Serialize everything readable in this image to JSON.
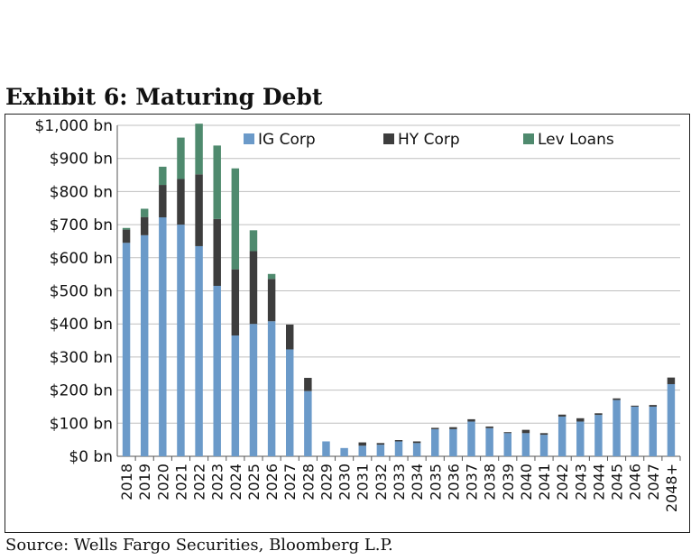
{
  "title": "Exhibit 6: Maturing Debt",
  "source": "Source: Wells Fargo Securities, Bloomberg L.P.",
  "colors": {
    "ig": "#6b9ac9",
    "hy": "#3d3d3d",
    "lev": "#4f8a6e",
    "grid": "#bfbfbf"
  },
  "chart_data": {
    "type": "bar",
    "stacked": true,
    "title": "Exhibit 6: Maturing Debt",
    "ylim": [
      0,
      1000
    ],
    "yticks": [
      "$0 bn",
      "$100 bn",
      "$200 bn",
      "$300 bn",
      "$400 bn",
      "$500 bn",
      "$600 bn",
      "$700 bn",
      "$800 bn",
      "$900 bn",
      "$1,000 bn"
    ],
    "legend_position": "top",
    "grid": true,
    "categories": [
      "2018",
      "2019",
      "2020",
      "2021",
      "2022",
      "2023",
      "2024",
      "2025",
      "2026",
      "2027",
      "2028",
      "2029",
      "2030",
      "2031",
      "2032",
      "2033",
      "2034",
      "2035",
      "2036",
      "2037",
      "2038",
      "2039",
      "2040",
      "2041",
      "2042",
      "2043",
      "2044",
      "2045",
      "2046",
      "2047",
      "2048+"
    ],
    "series": [
      {
        "name": "IG Corp",
        "color": "#6b9ac9",
        "values": [
          645,
          668,
          722,
          700,
          635,
          515,
          365,
          400,
          408,
          323,
          197,
          45,
          25,
          32,
          35,
          45,
          40,
          82,
          82,
          105,
          85,
          70,
          70,
          65,
          120,
          105,
          125,
          170,
          150,
          150,
          218
        ]
      },
      {
        "name": "HY Corp",
        "color": "#3d3d3d",
        "values": [
          40,
          55,
          98,
          138,
          217,
          202,
          200,
          220,
          128,
          75,
          40,
          0,
          0,
          10,
          5,
          4,
          5,
          4,
          6,
          7,
          5,
          3,
          10,
          5,
          6,
          10,
          5,
          5,
          3,
          5,
          20
        ]
      },
      {
        "name": "Lev Loans",
        "color": "#4f8a6e",
        "values": [
          5,
          25,
          55,
          125,
          153,
          222,
          305,
          63,
          15,
          0,
          0,
          0,
          0,
          0,
          0,
          0,
          0,
          0,
          0,
          0,
          0,
          0,
          0,
          0,
          0,
          0,
          0,
          0,
          0,
          0,
          0
        ]
      }
    ]
  }
}
